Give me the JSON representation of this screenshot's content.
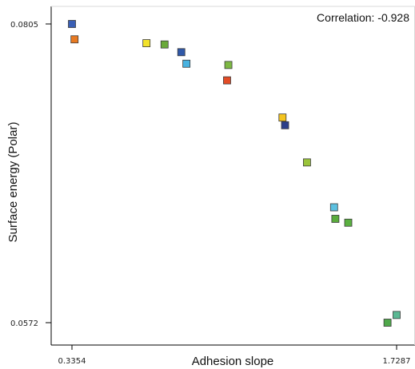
{
  "chart_data": {
    "type": "scatter",
    "title": "",
    "xlabel": "Adhesion slope",
    "ylabel": "Surface energy  (Polar)",
    "annotation": "Correlation: -0.928",
    "xlim": [
      0.3354,
      1.7287
    ],
    "ylim": [
      0.0572,
      0.0805
    ],
    "x_ticks": [
      "0.3354",
      "1.7287"
    ],
    "y_ticks": [
      "0.0805",
      "0.0572"
    ],
    "grid": false,
    "points": [
      {
        "x": 0.3354,
        "y": 0.0805,
        "color": "#3a5fb5"
      },
      {
        "x": 0.3464,
        "y": 0.0793,
        "color": "#e87a22"
      },
      {
        "x": 0.6552,
        "y": 0.079,
        "color": "#f2e22a"
      },
      {
        "x": 0.7327,
        "y": 0.0789,
        "color": "#6aaa3a"
      },
      {
        "x": 0.8046,
        "y": 0.0783,
        "color": "#2f58a8"
      },
      {
        "x": 0.8267,
        "y": 0.0774,
        "color": "#48b2e0"
      },
      {
        "x": 1.0066,
        "y": 0.0773,
        "color": "#7db843"
      },
      {
        "x": 1.0011,
        "y": 0.0761,
        "color": "#e34c26"
      },
      {
        "x": 1.239,
        "y": 0.0732,
        "color": "#f4c41f"
      },
      {
        "x": 1.25,
        "y": 0.0726,
        "color": "#2c3f8a"
      },
      {
        "x": 1.3441,
        "y": 0.0697,
        "color": "#9ac43a"
      },
      {
        "x": 1.4603,
        "y": 0.0662,
        "color": "#5cc0e0"
      },
      {
        "x": 1.4658,
        "y": 0.0653,
        "color": "#5aac3c"
      },
      {
        "x": 1.5211,
        "y": 0.065,
        "color": "#5ab040"
      },
      {
        "x": 1.6896,
        "y": 0.0572,
        "color": "#4fa84a"
      },
      {
        "x": 1.7287,
        "y": 0.0578,
        "color": "#5ab893"
      }
    ]
  }
}
